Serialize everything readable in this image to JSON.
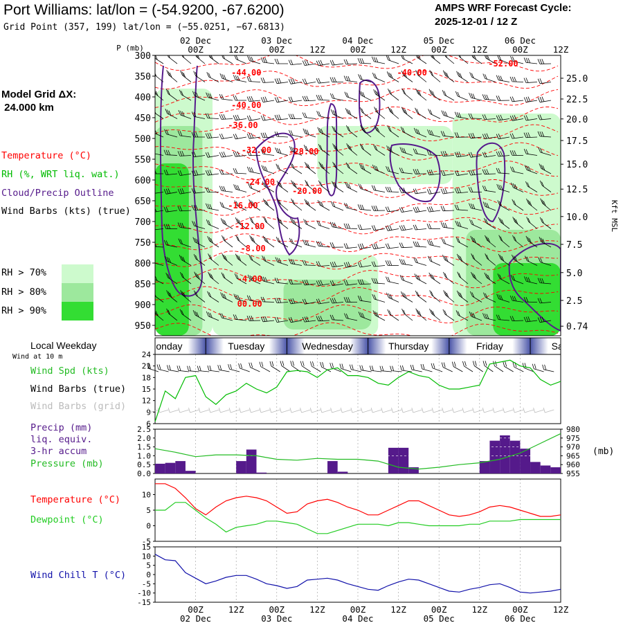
{
  "header": {
    "title": "Port Williams:  lat/lon = (-54.9200, -67.6200)",
    "subtitle": "Grid Point (357, 199) lat/lon = (−55.0251, −67.6813)",
    "cycle_line1": "AMPS WRF Forecast Cycle:",
    "cycle_line2": "2025-12-01 / 12  Z",
    "model_grid_line1": "Model Grid ΔX:",
    "model_grid_line2": " 24.000 km"
  },
  "legend": {
    "temperature": "Temperature (°C)",
    "rh": "RH (%, WRT liq. wat.)",
    "cloud": "Cloud/Precip Outline",
    "wind_barbs": "Wind Barbs (kts) (true)",
    "rh_bins": [
      {
        "label": "RH > 70%",
        "color": "#cdfacd"
      },
      {
        "label": "RH > 80%",
        "color": "#9de89d"
      },
      {
        "label": "RH > 90%",
        "color": "#33dd33"
      }
    ]
  },
  "colors": {
    "temperature": "#ff0000",
    "rh": "#00bb00",
    "cloud": "#551a8b",
    "precip": "#551a8b",
    "pressure": "#22bb22",
    "dewpoint": "#22cc22",
    "windchill": "#1111aa",
    "grid_barbs": "#bbbbbb"
  },
  "time_axis": {
    "ticks": [
      "00Z",
      "12Z",
      "00Z",
      "12Z",
      "00Z",
      "12Z",
      "00Z",
      "12Z",
      "00Z",
      "12Z"
    ],
    "forecast_hours": [
      12,
      24,
      36,
      48,
      60,
      72,
      84,
      96,
      108,
      120
    ],
    "date_labels": [
      "02 Dec",
      "03 Dec",
      "04 Dec",
      "05 Dec",
      "06 Dec"
    ],
    "date_hours": [
      12,
      36,
      60,
      84,
      108
    ],
    "hour_range": [
      0,
      120
    ]
  },
  "weekday_bar": {
    "label": "Local Weekday",
    "days": [
      "Monday",
      "Tuesday",
      "Wednesday",
      "Thursday",
      "Friday",
      "Saturday"
    ],
    "visible_text": [
      "nday",
      "Tuesday",
      "Wednesday",
      "Thursday",
      "Friday",
      "S"
    ],
    "boundaries_hours": [
      15,
      39,
      63,
      87,
      111
    ]
  },
  "chart_data": [
    {
      "type": "heatmap",
      "name": "time-height cross section",
      "y_axis_label": "P (mb)",
      "pressure_levels": [
        300,
        350,
        400,
        450,
        500,
        550,
        600,
        650,
        700,
        750,
        800,
        850,
        900,
        950
      ],
      "ylim": [
        300,
        975
      ],
      "altitude_label": "Kft MSL",
      "altitude_ticks": [
        "25.0",
        "22.5",
        "20.0",
        "17.5",
        "15.0",
        "12.5",
        "10.0",
        "7.5",
        "5.0",
        "2.5",
        "0.74"
      ],
      "altitude_pressures": [
        355,
        405,
        453,
        505,
        562,
        622,
        688,
        755,
        823,
        890,
        952
      ],
      "temperature_contour_labels": [
        {
          "text": "-44.00",
          "hour": 27,
          "p": 342
        },
        {
          "text": "-40.00",
          "hour": 76,
          "p": 342
        },
        {
          "text": "-52.00",
          "hour": 103,
          "p": 320
        },
        {
          "text": "-40.00",
          "hour": 27,
          "p": 420
        },
        {
          "text": "-36.00",
          "hour": 26,
          "p": 468
        },
        {
          "text": "-32.00",
          "hour": 30,
          "p": 528
        },
        {
          "text": "-28.00",
          "hour": 44,
          "p": 532
        },
        {
          "text": "-24.00",
          "hour": 31,
          "p": 605
        },
        {
          "text": "-20.00",
          "hour": 45,
          "p": 627
        },
        {
          "text": "-16.00",
          "hour": 26,
          "p": 662
        },
        {
          "text": "-12.00",
          "hour": 28,
          "p": 712
        },
        {
          "text": "-8.00",
          "hour": 29,
          "p": 765
        },
        {
          "text": "-4.00",
          "hour": 28,
          "p": 838
        },
        {
          "text": "00.00",
          "hour": 28,
          "p": 898
        }
      ],
      "rh_regions": [
        {
          "level": 70,
          "hour_start": 0,
          "hour_end": 17,
          "p_top": 380,
          "p_bottom": 975
        },
        {
          "level": 70,
          "hour_start": 17,
          "hour_end": 66,
          "p_top": 780,
          "p_bottom": 975
        },
        {
          "level": 70,
          "hour_start": 48,
          "hour_end": 88,
          "p_top": 470,
          "p_bottom": 610
        },
        {
          "level": 70,
          "hour_start": 88,
          "hour_end": 120,
          "p_top": 440,
          "p_bottom": 975
        },
        {
          "level": 80,
          "hour_start": 0,
          "hour_end": 14,
          "p_top": 470,
          "p_bottom": 975
        },
        {
          "level": 80,
          "hour_start": 38,
          "hour_end": 64,
          "p_top": 840,
          "p_bottom": 960
        },
        {
          "level": 80,
          "hour_start": 92,
          "hour_end": 120,
          "p_top": 720,
          "p_bottom": 975
        },
        {
          "level": 90,
          "hour_start": 0,
          "hour_end": 10,
          "p_top": 560,
          "p_bottom": 975
        },
        {
          "level": 90,
          "hour_start": 100,
          "hour_end": 120,
          "p_top": 800,
          "p_bottom": 975
        }
      ]
    },
    {
      "type": "line",
      "name": "wind speed",
      "ylabel": "Wind Spd (kts)",
      "ylim": [
        6,
        24
      ],
      "yticks": [
        6,
        9,
        12,
        15,
        18,
        21,
        24
      ],
      "hours": [
        0,
        3,
        6,
        9,
        12,
        15,
        18,
        21,
        24,
        27,
        30,
        33,
        36,
        39,
        42,
        45,
        48,
        51,
        54,
        57,
        60,
        63,
        66,
        69,
        72,
        75,
        78,
        81,
        84,
        87,
        90,
        93,
        96,
        99,
        102,
        105,
        108,
        111,
        114,
        117,
        120
      ],
      "values": [
        6.5,
        14.5,
        12.5,
        18.0,
        18.5,
        13.0,
        11.0,
        13.5,
        14.5,
        16.5,
        15.0,
        14.0,
        15.5,
        19.5,
        19.8,
        19.5,
        18.0,
        20.0,
        20.5,
        18.5,
        18.5,
        18.0,
        16.5,
        16.0,
        18.0,
        19.5,
        18.5,
        18.0,
        16.0,
        15.0,
        15.0,
        15.5,
        16.0,
        21.5,
        22.0,
        22.5,
        21.0,
        20.5,
        17.5,
        16.0,
        17.0
      ]
    },
    {
      "type": "bar",
      "name": "3-hr precipitation",
      "ylabel": "Precip (mm) liq. equiv. 3-hr accum",
      "ylim": [
        0,
        2.5
      ],
      "yticks": [
        0.0,
        0.5,
        1.0,
        1.5,
        2.0,
        2.5
      ],
      "bar_width_hours": 3,
      "bars": [
        {
          "hour": 1.5,
          "value": 0.55
        },
        {
          "hour": 4.5,
          "value": 0.6
        },
        {
          "hour": 7.5,
          "value": 0.7
        },
        {
          "hour": 10.5,
          "value": 0.15
        },
        {
          "hour": 25.5,
          "value": 0.7
        },
        {
          "hour": 28.5,
          "value": 1.35
        },
        {
          "hour": 31.5,
          "value": 0.05
        },
        {
          "hour": 52.5,
          "value": 0.7
        },
        {
          "hour": 55.5,
          "value": 0.1
        },
        {
          "hour": 70.5,
          "value": 1.45
        },
        {
          "hour": 73.5,
          "value": 1.45
        },
        {
          "hour": 76.5,
          "value": 0.35
        },
        {
          "hour": 97.5,
          "value": 0.7
        },
        {
          "hour": 100.5,
          "value": 1.85
        },
        {
          "hour": 103.5,
          "value": 2.15
        },
        {
          "hour": 106.5,
          "value": 1.85
        },
        {
          "hour": 109.5,
          "value": 1.4
        },
        {
          "hour": 112.5,
          "value": 0.65
        },
        {
          "hour": 115.5,
          "value": 0.45
        },
        {
          "hour": 118.5,
          "value": 0.35
        }
      ]
    },
    {
      "type": "line",
      "name": "sea level pressure",
      "ylabel": "Pressure (mb)",
      "y2label": "(mb)",
      "ylim": [
        955,
        980
      ],
      "yticks": [
        955,
        960,
        965,
        970,
        975,
        980
      ],
      "hours": [
        0,
        6,
        12,
        18,
        24,
        30,
        36,
        42,
        48,
        54,
        60,
        66,
        72,
        78,
        84,
        90,
        96,
        102,
        108,
        114,
        120
      ],
      "values": [
        969.0,
        967.0,
        964.5,
        965.5,
        965.5,
        965.0,
        963.0,
        962.5,
        963.5,
        963.0,
        963.0,
        962.0,
        958.5,
        957.5,
        958.5,
        960.0,
        961.0,
        963.0,
        966.5,
        972.0,
        977.5
      ]
    },
    {
      "type": "line",
      "name": "temperature and dewpoint",
      "ylim": [
        -5,
        15
      ],
      "yticks": [
        -5,
        0,
        5,
        10
      ],
      "hours": [
        0,
        3,
        6,
        9,
        12,
        15,
        18,
        21,
        24,
        27,
        30,
        33,
        36,
        39,
        42,
        45,
        48,
        51,
        54,
        57,
        60,
        63,
        66,
        69,
        72,
        75,
        78,
        81,
        84,
        87,
        90,
        93,
        96,
        99,
        102,
        105,
        108,
        111,
        114,
        117,
        120
      ],
      "series": [
        {
          "name": "Temperature (°C)",
          "values": [
            13.5,
            13.5,
            12.0,
            9.0,
            5.5,
            3.5,
            6.0,
            8.0,
            9.0,
            9.5,
            9.0,
            8.0,
            6.0,
            4.0,
            4.5,
            7.0,
            8.0,
            8.5,
            7.5,
            6.0,
            5.0,
            3.5,
            3.5,
            5.0,
            6.5,
            8.0,
            8.0,
            6.5,
            5.0,
            3.5,
            3.0,
            3.5,
            4.5,
            6.0,
            6.5,
            6.0,
            5.0,
            4.0,
            3.0,
            3.0,
            3.5
          ]
        },
        {
          "name": "Dewpoint (°C)",
          "values": [
            5.0,
            5.0,
            7.5,
            7.5,
            5.0,
            2.5,
            0.5,
            -2.0,
            -0.5,
            0.0,
            0.5,
            1.5,
            1.5,
            1.0,
            0.5,
            -1.0,
            -2.5,
            -2.5,
            -1.5,
            -0.5,
            0.5,
            0.5,
            0.5,
            0.0,
            1.0,
            1.0,
            0.5,
            0.0,
            0.0,
            0.0,
            0.0,
            0.5,
            0.5,
            1.5,
            1.5,
            1.5,
            2.0,
            2.0,
            2.0,
            2.0,
            2.0
          ]
        }
      ]
    },
    {
      "type": "line",
      "name": "wind chill",
      "ylabel": "Wind Chill T (°C)",
      "ylim": [
        -15,
        15
      ],
      "yticks": [
        -15,
        -10,
        -5,
        0,
        5,
        10,
        15
      ],
      "hours": [
        0,
        3,
        6,
        9,
        12,
        15,
        18,
        21,
        24,
        27,
        30,
        33,
        36,
        39,
        42,
        45,
        48,
        51,
        54,
        57,
        60,
        63,
        66,
        69,
        72,
        75,
        78,
        81,
        84,
        87,
        90,
        93,
        96,
        99,
        102,
        105,
        108,
        111,
        114,
        117,
        120
      ],
      "values": [
        11.0,
        8.0,
        7.5,
        1.0,
        -2.0,
        -5.0,
        -3.5,
        -1.5,
        -0.5,
        -0.5,
        -2.5,
        -5.0,
        -6.0,
        -7.5,
        -6.5,
        -3.0,
        -2.5,
        -2.0,
        -3.0,
        -5.0,
        -6.5,
        -8.0,
        -8.5,
        -6.0,
        -4.0,
        -2.5,
        -3.0,
        -5.0,
        -7.0,
        -9.0,
        -9.5,
        -8.0,
        -7.0,
        -5.5,
        -5.0,
        -7.0,
        -9.5,
        -10.0,
        -9.5,
        -9.0,
        -8.0
      ]
    }
  ],
  "panel_labels": {
    "wind_at_10m": "Wind at 10 m",
    "wind_spd": "Wind Spd (kts)",
    "wind_barbs_true": "Wind Barbs (true)",
    "wind_barbs_grid": "Wind Barbs (grid)",
    "precip": "Precip (mm)",
    "precip_line2": "liq. equiv.",
    "precip_line3": "3-hr accum",
    "pressure": "Pressure (mb)",
    "temperature": "Temperature (°C)",
    "dewpoint": "Dewpoint (°C)",
    "windchill": "Wind Chill T (°C)"
  }
}
